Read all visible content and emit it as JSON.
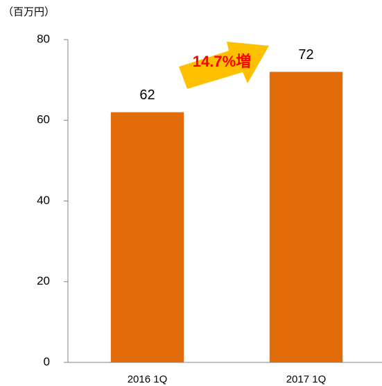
{
  "chart_data": {
    "type": "bar",
    "y_label": "（百万円）",
    "categories": [
      "2016 1Q",
      "2017 1Q"
    ],
    "values": [
      62,
      72
    ],
    "color": "#e36c0a",
    "ylim": [
      0,
      80
    ],
    "yticks": [
      0,
      20,
      40,
      60,
      80
    ],
    "grid": false,
    "annotation": "14.7%増"
  }
}
